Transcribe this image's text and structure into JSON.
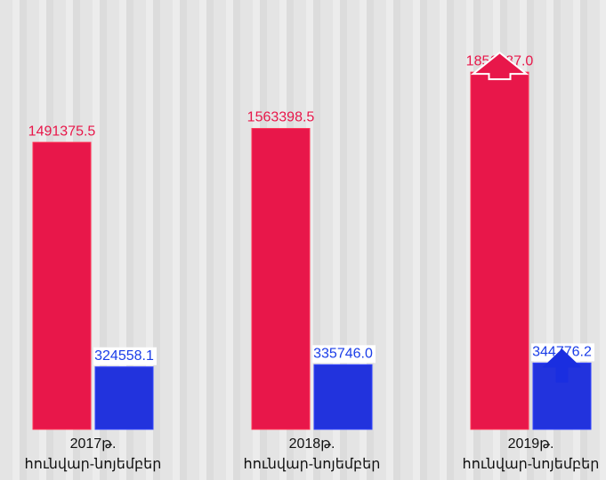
{
  "chart_data": {
    "type": "bar",
    "categories": [
      "2017թ.\nհունվար-նոյեմբեր",
      "2018թ.\nհունվար-նոյեմբեր",
      "2019թ.\nհունվար-նոյեմբեր"
    ],
    "series": [
      {
        "color": "#e8174a",
        "label_color": "#e8174a",
        "values": [
          1491375.5,
          1563398.5,
          1856087.0
        ],
        "value_labels": [
          "1491375.5",
          "1563398.5",
          "1856087.0"
        ]
      },
      {
        "color": "#2233dd",
        "label_color": "#1a3de8",
        "values": [
          324558.1,
          335746.0,
          344776.2
        ],
        "value_labels": [
          "324558.1",
          "335746.0",
          "344776.2"
        ]
      }
    ],
    "ylim": [
      0,
      2000000
    ]
  }
}
